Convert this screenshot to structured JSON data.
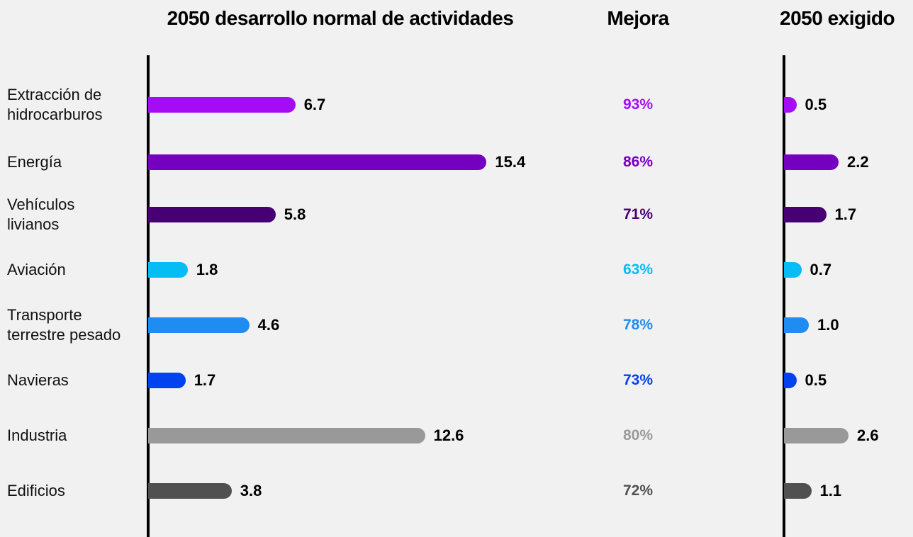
{
  "chart_data": [
    {
      "type": "bar",
      "title": "2050 desarrollo normal de actividades",
      "categories": [
        "Extracción de\nhidrocarburos",
        "Energía",
        "Vehículos\nlivianos",
        "Aviación",
        "Transporte\nterrestre pesado",
        "Navieras",
        "Industria",
        "Edificios"
      ],
      "values": [
        6.7,
        15.4,
        5.8,
        1.8,
        4.6,
        1.7,
        12.6,
        3.8
      ],
      "colors": [
        "#a50cf5",
        "#7500c0",
        "#460073",
        "#05bcf5",
        "#1e8cf0",
        "#0041f0",
        "#999999",
        "#505050"
      ]
    },
    {
      "type": "labels",
      "title": "Mejora",
      "values": [
        93,
        86,
        71,
        63,
        78,
        73,
        80,
        72
      ],
      "value_labels": [
        "93%",
        "86%",
        "71%",
        "63%",
        "78%",
        "73%",
        "80%",
        "72%"
      ],
      "colors": [
        "#a50cf5",
        "#7500c0",
        "#460073",
        "#05bcf5",
        "#1e8cf0",
        "#0041f0",
        "#999999",
        "#505050"
      ]
    },
    {
      "type": "bar",
      "title": "2050 exigido",
      "values": [
        0.5,
        2.2,
        1.7,
        0.7,
        1.0,
        0.5,
        2.6,
        1.1
      ],
      "value_labels": [
        "0.5",
        "2.2",
        "1.7",
        "0.7",
        "1.0",
        "0.5",
        "2.6",
        "1.1"
      ],
      "colors": [
        "#a50cf5",
        "#7500c0",
        "#460073",
        "#05bcf5",
        "#1e8cf0",
        "#0041f0",
        "#999999",
        "#505050"
      ]
    }
  ]
}
